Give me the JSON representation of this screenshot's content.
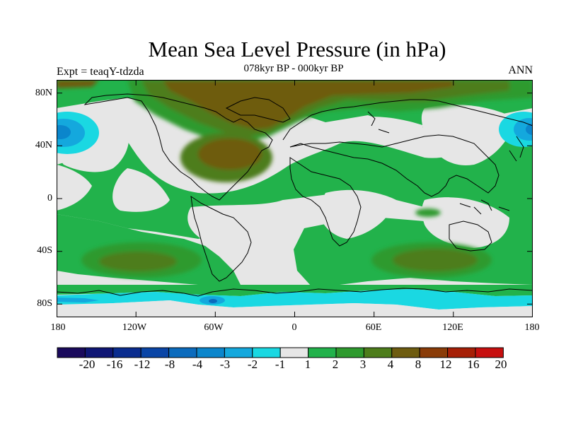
{
  "title": "Mean Sea Level Pressure (in hPa)",
  "subtitle": "078kyr BP - 000kyr BP",
  "left_label": "Expt = teaqY-tdzda",
  "right_label": "ANN",
  "colors": {
    "background_land_neutral": "#e6e6e6",
    "coastline": "#000000"
  },
  "map": {
    "projection": "cylindrical-equidistant",
    "lon_range": [
      -180,
      180
    ],
    "lat_range": [
      -90,
      90
    ],
    "y_tick_labels": [
      "80N",
      "40N",
      "0",
      "40S",
      "80S"
    ],
    "x_tick_labels": [
      "180",
      "120W",
      "60W",
      "0",
      "60E",
      "120E",
      "180"
    ]
  },
  "colorbar": {
    "labels": [
      "-20",
      "-16",
      "-12",
      "-8",
      "-4",
      "-3",
      "-2",
      "-1",
      "1",
      "2",
      "3",
      "4",
      "8",
      "12",
      "16",
      "20"
    ],
    "colors": [
      "#1a0a5c",
      "#0f1675",
      "#0a2c8f",
      "#0a45a6",
      "#0b6bbd",
      "#0b86cc",
      "#14a8dd",
      "#1ad8e2",
      "#e6e6e6",
      "#22b24b",
      "#2e9a2e",
      "#4d7d1b",
      "#6e5c10",
      "#8a3c08",
      "#a61f06",
      "#c70f0f"
    ]
  }
}
